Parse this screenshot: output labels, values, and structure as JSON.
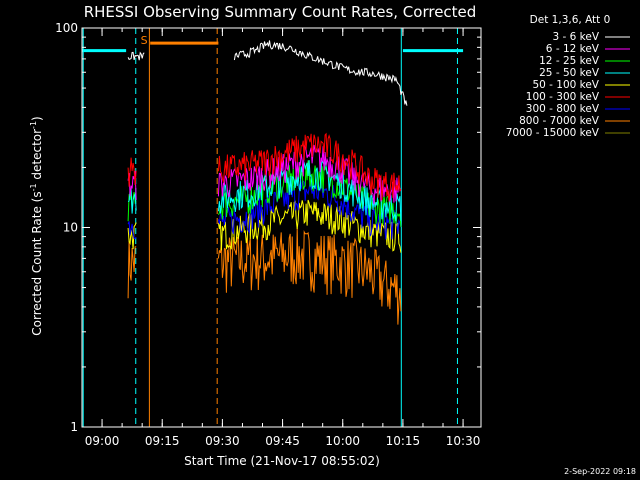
{
  "chart_data": {
    "type": "line",
    "title": "RHESSI Observing Summary Count Rates, Corrected",
    "xlabel": "Start Time (21-Nov-17 08:55:02)",
    "ylabel_main": "Corrected Count Rate (s",
    "ylabel_sup1": "-1",
    "ylabel_mid": " detector",
    "ylabel_sup2": "-1",
    "ylabel_end": ")",
    "yscale": "log",
    "ylim": [
      1,
      100
    ],
    "xlim": [
      "08:55:02",
      "10:34:30"
    ],
    "xticks": [
      {
        "t": 5,
        "label": "09:00"
      },
      {
        "t": 20,
        "label": "09:15"
      },
      {
        "t": 35,
        "label": "09:30"
      },
      {
        "t": 50,
        "label": "09:45"
      },
      {
        "t": 65,
        "label": "10:00"
      },
      {
        "t": 80,
        "label": "10:15"
      },
      {
        "t": 95,
        "label": "10:30"
      }
    ],
    "yticks": [
      {
        "v": 1,
        "label": "1"
      },
      {
        "v": 10,
        "label": "10"
      },
      {
        "v": 100,
        "label": "100"
      }
    ],
    "legend_header": "Det 1,3,6, Att 0",
    "legend_position": "right, outside plot",
    "series": [
      {
        "name": "3 - 6 keV",
        "color": "#ffffff",
        "base": [
          72,
          72,
          74,
          77,
          83,
          82,
          80,
          76,
          72,
          69,
          66,
          63,
          61,
          60,
          59,
          57,
          55,
          40
        ]
      },
      {
        "name": "6 - 12 keV",
        "color": "#ff00ff",
        "base": [
          16.5,
          16.5,
          17,
          17.5,
          18.5,
          19.5,
          21,
          22.5,
          22,
          20,
          17.5,
          15.8,
          15.5,
          15.5
        ]
      },
      {
        "name": "12 - 25 keV",
        "color": "#00ff00",
        "base": [
          13,
          13,
          13.5,
          14,
          15.5,
          16.5,
          17.5,
          18.5,
          18,
          16.5,
          14.5,
          12.8,
          12.5,
          12.2
        ]
      },
      {
        "name": "25 - 50 keV",
        "color": "#00ffff",
        "base": [
          14,
          14,
          14.5,
          15,
          16,
          17,
          18,
          19,
          18.5,
          17,
          15,
          13.5,
          13,
          12.8
        ]
      },
      {
        "name": "50 - 100 keV",
        "color": "#ffff00",
        "base": [
          9.2,
          9.2,
          9.5,
          10,
          10.5,
          11,
          11.5,
          12,
          11.5,
          11,
          10.2,
          9.5,
          9.2,
          9
        ]
      },
      {
        "name": "100 - 300 keV",
        "color": "#ff0000",
        "base": [
          19.5,
          19.5,
          20,
          20.5,
          21.5,
          23,
          24.5,
          26,
          25.5,
          23,
          20.5,
          17.5,
          16.5,
          16.5
        ]
      },
      {
        "name": "300 - 800 keV",
        "color": "#0000ff",
        "base": [
          10.5,
          10.5,
          11,
          11.5,
          12.5,
          13.5,
          14.5,
          15.5,
          15,
          13.8,
          12,
          10.8,
          10.5,
          10.3
        ]
      },
      {
        "name": "800 - 7000 keV",
        "color": "#ff8000",
        "base": [
          6.8,
          6.8,
          6.9,
          7,
          7.1,
          7.2,
          7.4,
          7.3,
          7.1,
          6.8,
          6.5,
          6,
          5.2,
          4.8
        ]
      },
      {
        "name": "7000 - 15000 keV",
        "color": "#808000",
        "base": []
      }
    ],
    "segment_times": {
      "early": [
        11.5,
        13.5
      ],
      "late": [
        34.0,
        79.5
      ],
      "black_early": [
        11.5,
        15.5
      ],
      "black_late": [
        38.0,
        81.0
      ]
    },
    "flags": [
      {
        "name": "night",
        "color": "#00ffff",
        "t0": 0,
        "t1": 11,
        "level": 77
      },
      {
        "name": "night",
        "color": "#00ffff",
        "t0": 80,
        "t1": 95,
        "level": 77
      },
      {
        "name": "saa",
        "color": "#ff8000",
        "t0": 17,
        "t1": 34,
        "level": 84
      }
    ],
    "vlines": [
      {
        "t": 0.3,
        "color": "#00ffff",
        "style": "solid"
      },
      {
        "t": 13.4,
        "color": "#00ffff",
        "style": "dashed"
      },
      {
        "t": 16.8,
        "color": "#ff8000",
        "style": "solid"
      },
      {
        "t": 33.7,
        "color": "#ff8000",
        "style": "dashed"
      },
      {
        "t": 79.6,
        "color": "#00ffff",
        "style": "solid"
      },
      {
        "t": 93.6,
        "color": "#00ffff",
        "style": "dashed"
      }
    ],
    "s_marker": {
      "label": "S",
      "t": 15.6
    },
    "timestamp": "2-Sep-2022 09:18"
  }
}
